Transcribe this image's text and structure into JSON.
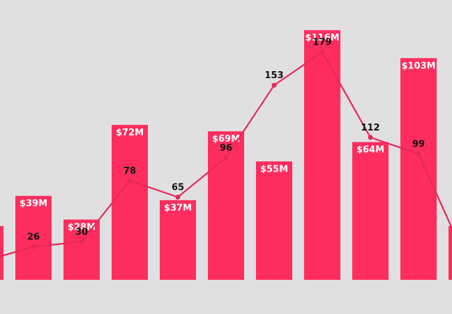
{
  "chart_data": {
    "type": "bar",
    "bar_series": {
      "values": [
        25,
        39,
        28,
        72,
        37,
        69,
        55,
        116,
        64,
        103,
        25
      ],
      "labels": [
        "",
        "$39M",
        "$28M",
        "$72M",
        "$37M",
        "$69M",
        "$55M",
        "$116M",
        "$64M",
        "$103M",
        ""
      ]
    },
    "line_series": {
      "values": [
        15,
        26,
        30,
        78,
        65,
        96,
        153,
        179,
        112,
        99,
        15
      ],
      "labels": [
        "",
        "26",
        "30",
        "78",
        "65",
        "96",
        "153",
        "179",
        "112",
        "99",
        ""
      ]
    },
    "colors": {
      "bar": "#ff2d5f",
      "line": "#e5285a",
      "background": "#e1e0e1"
    },
    "axes": {
      "bar_range": [
        0,
        130
      ],
      "line_range": [
        0,
        220
      ]
    },
    "grid": false,
    "legend": "none"
  }
}
